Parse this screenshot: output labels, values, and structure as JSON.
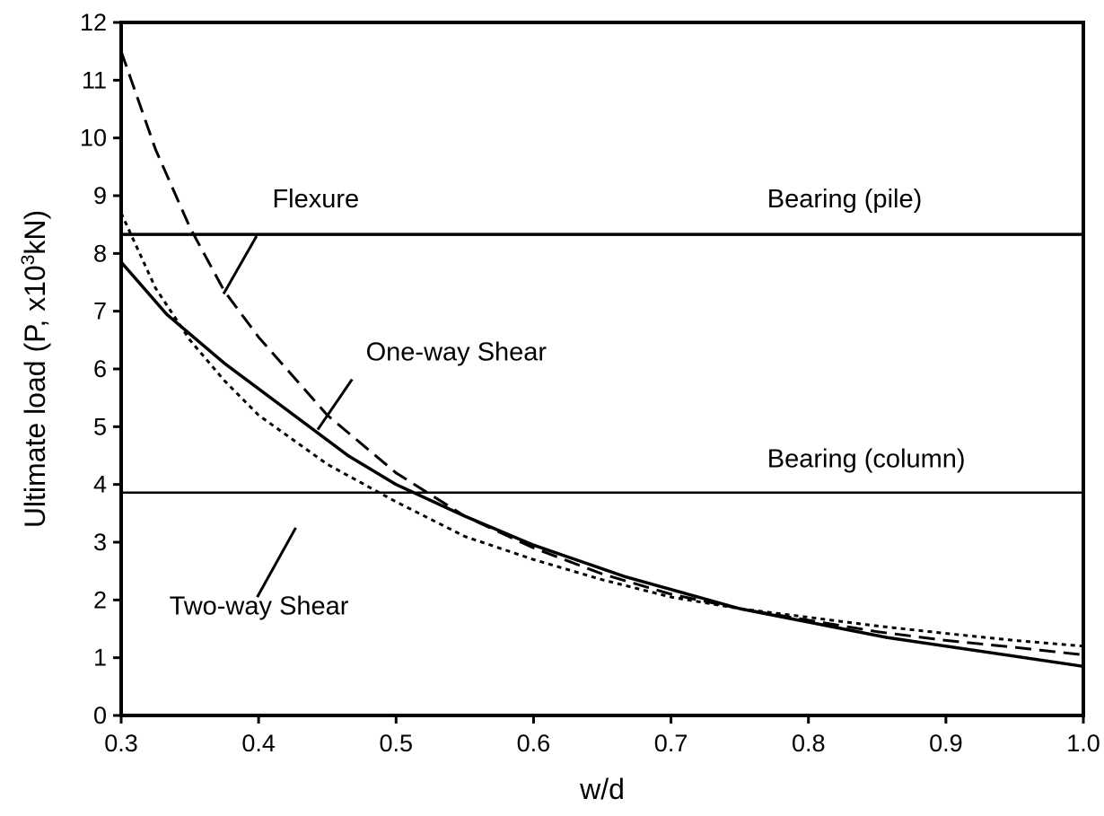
{
  "chart_data": {
    "type": "line",
    "title": "",
    "xlabel": "w/d",
    "ylabel_main": "Ultimate load (P, x10",
    "ylabel_sup": "3",
    "ylabel_tail": "kN)",
    "xlim": [
      0.3,
      1.0
    ],
    "ylim": [
      0,
      12
    ],
    "x_ticks": [
      0.3,
      0.4,
      0.5,
      0.6,
      0.7,
      0.8,
      0.9,
      1.0
    ],
    "x_tick_labels": [
      "0.3",
      "0.4",
      "0.5",
      "0.6",
      "0.7",
      "0.8",
      "0.9",
      "1.0"
    ],
    "y_ticks": [
      0,
      1,
      2,
      3,
      4,
      5,
      6,
      7,
      8,
      9,
      10,
      11,
      12
    ],
    "y_tick_labels": [
      "0",
      "1",
      "2",
      "3",
      "4",
      "5",
      "6",
      "7",
      "8",
      "9",
      "10",
      "11",
      "12"
    ],
    "grid": false,
    "legend": "none",
    "series": [
      {
        "name": "Flexure",
        "style": "dashed",
        "x": [
          0.3,
          0.325,
          0.35,
          0.375,
          0.4,
          0.45,
          0.5,
          0.55,
          0.6,
          0.65,
          0.7,
          0.75,
          0.8,
          0.85,
          0.9,
          0.95,
          1.0
        ],
        "y": [
          11.5,
          9.8,
          8.45,
          7.35,
          6.55,
          5.2,
          4.2,
          3.45,
          2.9,
          2.45,
          2.1,
          1.85,
          1.65,
          1.45,
          1.3,
          1.18,
          1.05
        ]
      },
      {
        "name": "One-way Shear",
        "style": "solid",
        "x": [
          0.3,
          0.333,
          0.375,
          0.42,
          0.465,
          0.5,
          0.55,
          0.6,
          0.667,
          0.75,
          0.857,
          1.0
        ],
        "y": [
          7.85,
          6.95,
          6.1,
          5.3,
          4.5,
          4.0,
          3.45,
          2.95,
          2.4,
          1.85,
          1.35,
          0.85
        ]
      },
      {
        "name": "Two-way Shear",
        "style": "dotted",
        "x": [
          0.3,
          0.325,
          0.35,
          0.375,
          0.4,
          0.45,
          0.5,
          0.55,
          0.6,
          0.65,
          0.7,
          0.75,
          0.8,
          0.85,
          0.9,
          0.95,
          1.0
        ],
        "y": [
          8.7,
          7.4,
          6.5,
          5.8,
          5.2,
          4.35,
          3.7,
          3.1,
          2.7,
          2.35,
          2.05,
          1.85,
          1.7,
          1.55,
          1.42,
          1.3,
          1.2
        ]
      },
      {
        "name": "Bearing (pile)",
        "style": "solid",
        "x": [
          0.3,
          1.0
        ],
        "y": [
          8.33,
          8.33
        ]
      },
      {
        "name": "Bearing (column)",
        "style": "solid-thin",
        "x": [
          0.3,
          1.0
        ],
        "y": [
          3.86,
          3.86
        ]
      }
    ],
    "annotations": [
      {
        "text": "Flexure",
        "label_at": [
          0.41,
          8.8
        ],
        "leader_from": [
          0.3985,
          8.3
        ],
        "leader_to": [
          0.3745,
          7.3
        ]
      },
      {
        "text": "One-way Shear",
        "label_at": [
          0.478,
          6.15
        ],
        "leader_from": [
          0.468,
          5.82
        ],
        "leader_to": [
          0.443,
          4.95
        ]
      },
      {
        "text": "Two-way Shear",
        "label_at": [
          0.335,
          1.75
        ],
        "leader_from": [
          0.399,
          2.05
        ],
        "leader_to": [
          0.427,
          3.25
        ]
      },
      {
        "text": "Bearing (pile)",
        "label_at": [
          0.77,
          8.8
        ]
      },
      {
        "text": "Bearing (column)",
        "label_at": [
          0.77,
          4.3
        ]
      }
    ]
  }
}
